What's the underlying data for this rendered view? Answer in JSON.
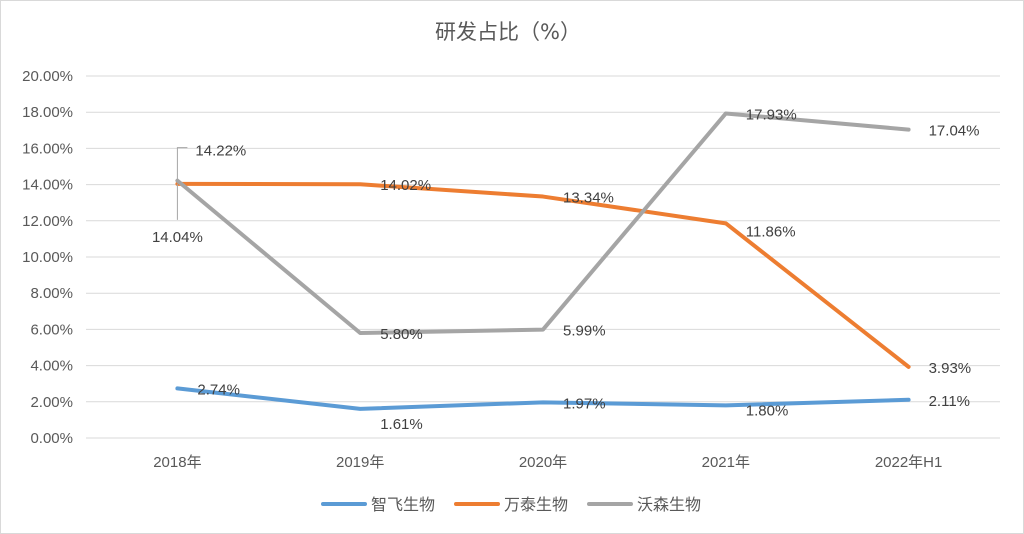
{
  "chart_data": {
    "type": "line",
    "title": "研发占比（%）",
    "xlabel": "",
    "ylabel": "",
    "categories": [
      "2018年",
      "2019年",
      "2020年",
      "2021年",
      "2022年H1"
    ],
    "y_ticks": [
      "0.00%",
      "2.00%",
      "4.00%",
      "6.00%",
      "8.00%",
      "10.00%",
      "12.00%",
      "14.00%",
      "16.00%",
      "18.00%",
      "20.00%"
    ],
    "ylim": [
      0,
      20
    ],
    "grid": true,
    "legend": "bottom",
    "series": [
      {
        "name": "智飞生物",
        "color": "#5b9bd5",
        "values": [
          2.74,
          1.61,
          1.97,
          1.8,
          2.11
        ],
        "labels": [
          "2.74%",
          "1.61%",
          "1.97%",
          "1.80%",
          "2.11%"
        ]
      },
      {
        "name": "万泰生物",
        "color": "#ed7d31",
        "values": [
          14.04,
          14.02,
          13.34,
          11.86,
          3.93
        ],
        "labels": [
          "14.04%",
          "14.02%",
          "13.34%",
          "11.86%",
          "3.93%"
        ]
      },
      {
        "name": "沃森生物",
        "color": "#a5a5a5",
        "values": [
          14.22,
          5.8,
          5.99,
          17.93,
          17.04
        ],
        "labels": [
          "14.22%",
          "5.80%",
          "5.99%",
          "17.93%",
          "17.04%"
        ]
      }
    ]
  }
}
